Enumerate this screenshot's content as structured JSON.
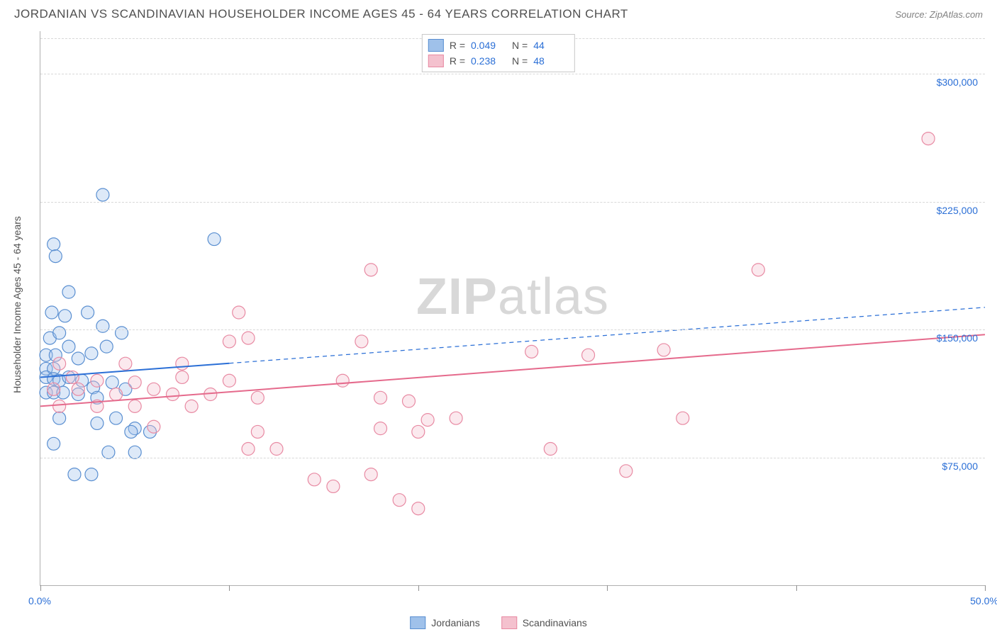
{
  "title": "JORDANIAN VS SCANDINAVIAN HOUSEHOLDER INCOME AGES 45 - 64 YEARS CORRELATION CHART",
  "source": "Source: ZipAtlas.com",
  "y_axis_label": "Householder Income Ages 45 - 64 years",
  "watermark": {
    "part1": "ZIP",
    "part2": "atlas"
  },
  "chart": {
    "type": "scatter",
    "xlim": [
      0,
      50
    ],
    "ylim": [
      0,
      325000
    ],
    "x_tick_positions": [
      0,
      10,
      20,
      30,
      40,
      50
    ],
    "x_tick_labels": {
      "0": "0.0%",
      "50": "50.0%"
    },
    "y_gridlines": [
      75000,
      150000,
      225000,
      300000
    ],
    "y_tick_labels": {
      "75000": "$75,000",
      "150000": "$150,000",
      "225000": "$225,000",
      "300000": "$300,000"
    },
    "grid_color": "#d8d8d8",
    "axis_color": "#b0b0b0",
    "label_color": "#2b6fd6",
    "background_color": "#ffffff",
    "marker_radius": 9,
    "marker_stroke_width": 1.2,
    "marker_fill_opacity": 0.35,
    "line_width": 2,
    "series": [
      {
        "name": "Jordanians",
        "fill_color": "#9fc1ea",
        "stroke_color": "#5a8fd1",
        "line_color": "#2b6fd6",
        "r_value": "0.049",
        "n_value": "44",
        "regression_solid_end_x": 10,
        "regression": {
          "x1": 0,
          "y1": 122000,
          "x2": 50,
          "y2": 163000
        },
        "points": [
          [
            3.3,
            229000
          ],
          [
            0.7,
            200000
          ],
          [
            0.8,
            193000
          ],
          [
            9.2,
            203000
          ],
          [
            1.5,
            172000
          ],
          [
            0.6,
            160000
          ],
          [
            1.3,
            158000
          ],
          [
            2.5,
            160000
          ],
          [
            0.5,
            145000
          ],
          [
            1.0,
            148000
          ],
          [
            3.3,
            152000
          ],
          [
            4.3,
            148000
          ],
          [
            0.3,
            135000
          ],
          [
            0.8,
            135000
          ],
          [
            1.5,
            140000
          ],
          [
            2.0,
            133000
          ],
          [
            2.7,
            136000
          ],
          [
            3.5,
            140000
          ],
          [
            0.3,
            127000
          ],
          [
            0.7,
            127000
          ],
          [
            0.3,
            122000
          ],
          [
            0.7,
            121000
          ],
          [
            1.0,
            120000
          ],
          [
            1.5,
            122000
          ],
          [
            2.2,
            120000
          ],
          [
            2.8,
            116000
          ],
          [
            3.8,
            119000
          ],
          [
            0.3,
            113000
          ],
          [
            0.7,
            113000
          ],
          [
            1.2,
            113000
          ],
          [
            2.0,
            112000
          ],
          [
            3.0,
            110000
          ],
          [
            4.5,
            115000
          ],
          [
            1.0,
            98000
          ],
          [
            3.0,
            95000
          ],
          [
            4.0,
            98000
          ],
          [
            5.0,
            92000
          ],
          [
            5.8,
            90000
          ],
          [
            4.8,
            90000
          ],
          [
            3.6,
            78000
          ],
          [
            5.0,
            78000
          ],
          [
            2.7,
            65000
          ],
          [
            1.8,
            65000
          ],
          [
            0.7,
            83000
          ]
        ]
      },
      {
        "name": "Scandinavians",
        "fill_color": "#f4c1ce",
        "stroke_color": "#e88aa3",
        "line_color": "#e56a8c",
        "r_value": "0.238",
        "n_value": "48",
        "regression_solid_end_x": 50,
        "regression": {
          "x1": 0,
          "y1": 105000,
          "x2": 50,
          "y2": 147000
        },
        "points": [
          [
            47.0,
            262000
          ],
          [
            38.0,
            185000
          ],
          [
            17.5,
            185000
          ],
          [
            10.5,
            160000
          ],
          [
            11.0,
            145000
          ],
          [
            10.0,
            143000
          ],
          [
            17.0,
            143000
          ],
          [
            26.0,
            137000
          ],
          [
            29.0,
            135000
          ],
          [
            33.0,
            138000
          ],
          [
            7.5,
            130000
          ],
          [
            4.5,
            130000
          ],
          [
            1.0,
            130000
          ],
          [
            1.7,
            122000
          ],
          [
            3.0,
            120000
          ],
          [
            5.0,
            119000
          ],
          [
            7.5,
            122000
          ],
          [
            10.0,
            120000
          ],
          [
            16.0,
            120000
          ],
          [
            0.7,
            115000
          ],
          [
            2.0,
            115000
          ],
          [
            4.0,
            112000
          ],
          [
            6.0,
            115000
          ],
          [
            7.0,
            112000
          ],
          [
            9.0,
            112000
          ],
          [
            11.5,
            110000
          ],
          [
            18.0,
            110000
          ],
          [
            19.5,
            108000
          ],
          [
            1.0,
            105000
          ],
          [
            3.0,
            105000
          ],
          [
            5.0,
            105000
          ],
          [
            8.0,
            105000
          ],
          [
            20.5,
            97000
          ],
          [
            22.0,
            98000
          ],
          [
            34.0,
            98000
          ],
          [
            11.5,
            90000
          ],
          [
            18.0,
            92000
          ],
          [
            20.0,
            90000
          ],
          [
            27.0,
            80000
          ],
          [
            6.0,
            93000
          ],
          [
            14.5,
            62000
          ],
          [
            15.5,
            58000
          ],
          [
            17.5,
            65000
          ],
          [
            19.0,
            50000
          ],
          [
            20.0,
            45000
          ],
          [
            31.0,
            67000
          ],
          [
            11.0,
            80000
          ],
          [
            12.5,
            80000
          ]
        ]
      }
    ]
  },
  "stats_legend": {
    "r_label": "R =",
    "n_label": "N ="
  },
  "series_legend_labels": [
    "Jordanians",
    "Scandinavians"
  ]
}
